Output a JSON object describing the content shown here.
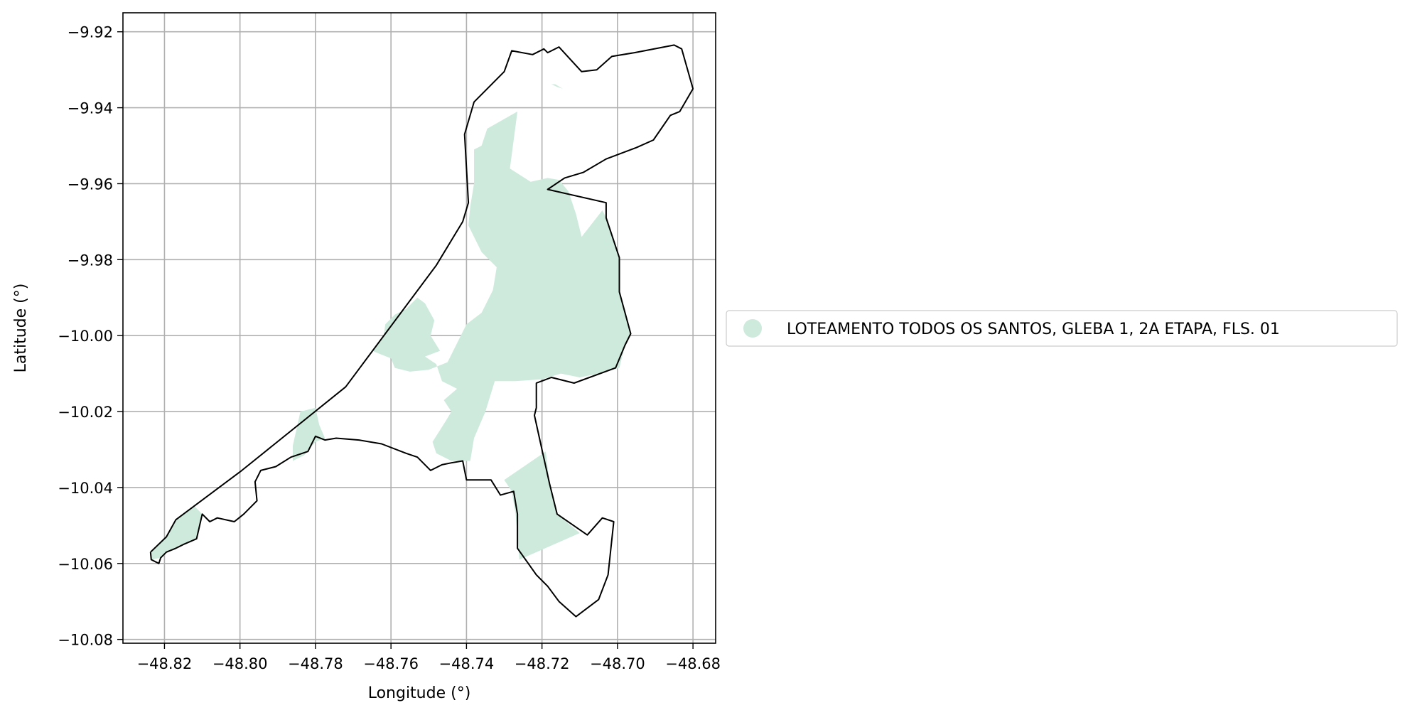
{
  "map": {
    "xlabel": "Longitude (°)",
    "ylabel": "Latitude (°)",
    "xlim": [
      -48.831,
      -48.674
    ],
    "ylim": [
      -10.081,
      -9.915
    ],
    "xticks": [
      -48.82,
      -48.8,
      -48.78,
      -48.76,
      -48.74,
      -48.72,
      -48.7,
      -48.68
    ],
    "xtick_labels": [
      "−48.82",
      "−48.80",
      "−48.78",
      "−48.76",
      "−48.74",
      "−48.72",
      "−48.70",
      "−48.68"
    ],
    "yticks": [
      -9.92,
      -9.94,
      -9.96,
      -9.98,
      -10.0,
      -10.02,
      -10.04,
      -10.06,
      -10.08
    ],
    "ytick_labels": [
      "−9.92",
      "−9.94",
      "−9.96",
      "−9.98",
      "−10.00",
      "−10.02",
      "−10.04",
      "−10.06",
      "−10.08"
    ],
    "grid": true,
    "legend": {
      "placement": "right of plot, vertically centered",
      "label": "LOTEAMENTO TODOS OS SANTOS, GLEBA 1, 2A ETAPA, FLS. 01"
    },
    "colors": {
      "fill": "#cdeadd",
      "boundary": "#000000",
      "grid": "#b0b0b0"
    },
    "boundary_lonlat": [
      [
        -48.8237,
        -10.057
      ],
      [
        -48.8195,
        -10.053
      ],
      [
        -48.817,
        -10.0485
      ],
      [
        -48.7995,
        -10.0355
      ],
      [
        -48.772,
        -10.0135
      ],
      [
        -48.748,
        -9.9815
      ],
      [
        -48.741,
        -9.97
      ],
      [
        -48.7395,
        -9.965
      ],
      [
        -48.7405,
        -9.947
      ],
      [
        -48.738,
        -9.9385
      ],
      [
        -48.73,
        -9.9305
      ],
      [
        -48.728,
        -9.925
      ],
      [
        -48.7225,
        -9.926
      ],
      [
        -48.7195,
        -9.9245
      ],
      [
        -48.7185,
        -9.9255
      ],
      [
        -48.7155,
        -9.924
      ],
      [
        -48.7095,
        -9.9305
      ],
      [
        -48.7055,
        -9.93
      ],
      [
        -48.7015,
        -9.9265
      ],
      [
        -48.6955,
        -9.9255
      ],
      [
        -48.685,
        -9.9235
      ],
      [
        -48.683,
        -9.9245
      ],
      [
        -48.68,
        -9.935
      ],
      [
        -48.6835,
        -9.941
      ],
      [
        -48.686,
        -9.942
      ],
      [
        -48.6905,
        -9.9485
      ],
      [
        -48.695,
        -9.9505
      ],
      [
        -48.703,
        -9.9535
      ],
      [
        -48.709,
        -9.957
      ],
      [
        -48.714,
        -9.9585
      ],
      [
        -48.7185,
        -9.9615
      ],
      [
        -48.703,
        -9.965
      ],
      [
        -48.703,
        -9.969
      ],
      [
        -48.6995,
        -9.9795
      ],
      [
        -48.6995,
        -9.9885
      ],
      [
        -48.6965,
        -9.9995
      ],
      [
        -48.698,
        -10.0025
      ],
      [
        -48.7005,
        -10.0085
      ],
      [
        -48.7115,
        -10.0125
      ],
      [
        -48.7175,
        -10.011
      ],
      [
        -48.7215,
        -10.0125
      ],
      [
        -48.7215,
        -10.019
      ],
      [
        -48.722,
        -10.021
      ],
      [
        -48.72,
        -10.03
      ],
      [
        -48.718,
        -10.039
      ],
      [
        -48.716,
        -10.047
      ],
      [
        -48.708,
        -10.0525
      ],
      [
        -48.704,
        -10.048
      ],
      [
        -48.701,
        -10.049
      ],
      [
        -48.7025,
        -10.063
      ],
      [
        -48.705,
        -10.0695
      ],
      [
        -48.711,
        -10.074
      ],
      [
        -48.7155,
        -10.07
      ],
      [
        -48.7185,
        -10.066
      ],
      [
        -48.7215,
        -10.063
      ],
      [
        -48.724,
        -10.0595
      ],
      [
        -48.7265,
        -10.056
      ],
      [
        -48.7265,
        -10.0525
      ],
      [
        -48.7265,
        -10.047
      ],
      [
        -48.7275,
        -10.041
      ],
      [
        -48.731,
        -10.042
      ],
      [
        -48.7335,
        -10.038
      ],
      [
        -48.74,
        -10.038
      ],
      [
        -48.741,
        -10.033
      ],
      [
        -48.744,
        -10.0335
      ],
      [
        -48.7465,
        -10.034
      ],
      [
        -48.7495,
        -10.0355
      ],
      [
        -48.753,
        -10.032
      ],
      [
        -48.756,
        -10.031
      ],
      [
        -48.7625,
        -10.0285
      ],
      [
        -48.7685,
        -10.0275
      ],
      [
        -48.7745,
        -10.027
      ],
      [
        -48.7775,
        -10.0275
      ],
      [
        -48.78,
        -10.0265
      ],
      [
        -48.782,
        -10.0305
      ],
      [
        -48.7865,
        -10.032
      ],
      [
        -48.7905,
        -10.0345
      ],
      [
        -48.7945,
        -10.0355
      ],
      [
        -48.796,
        -10.0385
      ],
      [
        -48.7955,
        -10.0435
      ],
      [
        -48.799,
        -10.047
      ],
      [
        -48.8015,
        -10.049
      ],
      [
        -48.806,
        -10.048
      ],
      [
        -48.808,
        -10.049
      ],
      [
        -48.81,
        -10.047
      ],
      [
        -48.8115,
        -10.0535
      ],
      [
        -48.815,
        -10.055
      ],
      [
        -48.817,
        -10.056
      ],
      [
        -48.8195,
        -10.057
      ],
      [
        -48.821,
        -10.0585
      ],
      [
        -48.8215,
        -10.06
      ],
      [
        -48.8235,
        -10.059
      ],
      [
        -48.8237,
        -10.057
      ]
    ],
    "fill_regions_lonlat": [
      [
        [
          -48.738,
          -9.951
        ],
        [
          -48.736,
          -9.95
        ],
        [
          -48.7345,
          -9.9455
        ],
        [
          -48.7265,
          -9.941
        ],
        [
          -48.7285,
          -9.956
        ],
        [
          -48.723,
          -9.9595
        ],
        [
          -48.7185,
          -9.9585
        ],
        [
          -48.7155,
          -9.959
        ],
        [
          -48.713,
          -9.962
        ],
        [
          -48.711,
          -9.968
        ],
        [
          -48.7095,
          -9.974
        ],
        [
          -48.704,
          -9.967
        ],
        [
          -48.703,
          -9.969
        ],
        [
          -48.6995,
          -9.9795
        ],
        [
          -48.6995,
          -9.9885
        ],
        [
          -48.6965,
          -9.9995
        ],
        [
          -48.698,
          -10.0025
        ],
        [
          -48.6995,
          -10.0085
        ],
        [
          -48.705,
          -10.01
        ],
        [
          -48.71,
          -10.011
        ],
        [
          -48.715,
          -10.01
        ],
        [
          -48.72,
          -10.0115
        ],
        [
          -48.727,
          -10.012
        ],
        [
          -48.7325,
          -10.012
        ],
        [
          -48.735,
          -10.02
        ],
        [
          -48.738,
          -10.027
        ],
        [
          -48.739,
          -10.033
        ],
        [
          -48.744,
          -10.033
        ],
        [
          -48.748,
          -10.031
        ],
        [
          -48.749,
          -10.028
        ],
        [
          -48.7455,
          -10.0225
        ],
        [
          -48.744,
          -10.02
        ],
        [
          -48.746,
          -10.017
        ],
        [
          -48.7425,
          -10.014
        ],
        [
          -48.7465,
          -10.012
        ],
        [
          -48.748,
          -10.0075
        ],
        [
          -48.751,
          -10.0055
        ],
        [
          -48.747,
          -10.004
        ],
        [
          -48.7495,
          -10.0
        ],
        [
          -48.7485,
          -9.996
        ],
        [
          -48.751,
          -9.9915
        ],
        [
          -48.753,
          -9.99
        ],
        [
          -48.756,
          -9.993
        ],
        [
          -48.759,
          -9.9945
        ],
        [
          -48.7615,
          -9.997
        ],
        [
          -48.762,
          -10.0005
        ],
        [
          -48.765,
          -10.004
        ],
        [
          -48.76,
          -10.006
        ],
        [
          -48.759,
          -10.0085
        ],
        [
          -48.755,
          -10.0095
        ],
        [
          -48.75,
          -10.009
        ],
        [
          -48.745,
          -10.007
        ],
        [
          -48.742,
          -10.001
        ],
        [
          -48.74,
          -9.997
        ],
        [
          -48.736,
          -9.994
        ],
        [
          -48.733,
          -9.988
        ],
        [
          -48.732,
          -9.982
        ],
        [
          -48.736,
          -9.978
        ],
        [
          -48.7395,
          -9.971
        ],
        [
          -48.739,
          -9.966
        ],
        [
          -48.738,
          -9.96
        ],
        [
          -48.738,
          -9.951
        ]
      ],
      [
        [
          -48.786,
          -10.029
        ],
        [
          -48.784,
          -10.02
        ],
        [
          -48.78,
          -10.019
        ],
        [
          -48.779,
          -10.0235
        ],
        [
          -48.7775,
          -10.027
        ],
        [
          -48.78,
          -10.028
        ],
        [
          -48.783,
          -10.0315
        ],
        [
          -48.786,
          -10.033
        ],
        [
          -48.786,
          -10.029
        ]
      ],
      [
        [
          -48.73,
          -10.038
        ],
        [
          -48.719,
          -10.0305
        ],
        [
          -48.718,
          -10.039
        ],
        [
          -48.716,
          -10.047
        ],
        [
          -48.71,
          -10.052
        ],
        [
          -48.726,
          -10.059
        ],
        [
          -48.7265,
          -10.0525
        ],
        [
          -48.727,
          -10.047
        ],
        [
          -48.728,
          -10.041
        ],
        [
          -48.73,
          -10.038
        ]
      ],
      [
        [
          -48.8235,
          -10.057
        ],
        [
          -48.8195,
          -10.053
        ],
        [
          -48.817,
          -10.0485
        ],
        [
          -48.812,
          -10.045
        ],
        [
          -48.81,
          -10.047
        ],
        [
          -48.8115,
          -10.0535
        ],
        [
          -48.815,
          -10.055
        ],
        [
          -48.817,
          -10.056
        ],
        [
          -48.8195,
          -10.057
        ],
        [
          -48.821,
          -10.0585
        ],
        [
          -48.8235,
          -10.059
        ],
        [
          -48.8235,
          -10.057
        ]
      ],
      [
        [
          -48.7145,
          -9.935
        ],
        [
          -48.716,
          -9.9345
        ],
        [
          -48.7175,
          -9.9338
        ],
        [
          -48.7165,
          -9.9338
        ],
        [
          -48.7145,
          -9.935
        ]
      ]
    ]
  }
}
